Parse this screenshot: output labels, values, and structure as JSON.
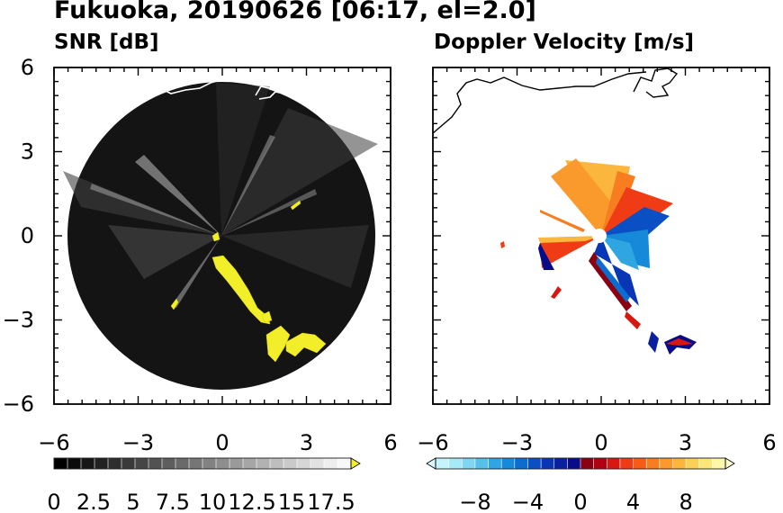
{
  "title": "Fukuoka, 20190626 [06:17, el=2.0]",
  "colors": {
    "background": "#ffffff",
    "snr_echo": "#f2ee2a",
    "coastline_on_dark": "#ffffff",
    "coastline_on_light": "#000000"
  },
  "chart_data": [
    {
      "type": "heatmap",
      "title": "SNR [dB]",
      "xlim": [
        -6,
        6
      ],
      "ylim": [
        -6,
        6
      ],
      "xticks": [
        "−6",
        "−3",
        "0",
        "3",
        "6"
      ],
      "yticks": [
        "6",
        "3",
        "0",
        "−3",
        "−6"
      ],
      "xtick_values": [
        -6,
        -3,
        0,
        3,
        6
      ],
      "ytick_values": [
        6,
        3,
        0,
        -3,
        -6
      ],
      "range_ring_radius": 5.5,
      "colorbar": {
        "range": [
          0,
          18.75
        ],
        "tick_labels": [
          "0",
          "2.5",
          "5",
          "7.5",
          "10",
          "12.5",
          "15",
          "17.5"
        ],
        "tick_values": [
          0,
          2.5,
          5,
          7.5,
          10,
          12.5,
          15,
          17.5
        ],
        "colors": [
          "#000000",
          "#0b0b0b",
          "#161616",
          "#222222",
          "#2e2e2e",
          "#3a3a3a",
          "#464646",
          "#525252",
          "#5e5e5e",
          "#6a6a6a",
          "#767676",
          "#828282",
          "#8e8e8e",
          "#9a9a9a",
          "#a6a6a6",
          "#b2b2b2",
          "#bebebe",
          "#cacaca",
          "#d6d6d6",
          "#e2e2e2",
          "#eeeeee",
          "#f8f8f8"
        ],
        "extend": "max",
        "extend_color": "#f2ee2a"
      }
    },
    {
      "type": "heatmap",
      "title": "Doppler Velocity [m/s]",
      "xlim": [
        -6,
        6
      ],
      "ylim": [
        -6,
        6
      ],
      "xticks": [
        "−6",
        "−3",
        "0",
        "3",
        "6"
      ],
      "yticks": [],
      "xtick_values": [
        -6,
        -3,
        0,
        3,
        6
      ],
      "colorbar": {
        "range": [
          -11,
          11
        ],
        "tick_labels": [
          "−8",
          "−4",
          "0",
          "4",
          "8"
        ],
        "tick_values": [
          -8,
          -4,
          0,
          4,
          8
        ],
        "colors": [
          "#c4f4fc",
          "#a6eaf8",
          "#7fd6f2",
          "#56c0ea",
          "#2fa6e2",
          "#168ad8",
          "#0c6cd0",
          "#0a50c4",
          "#0836b4",
          "#0a20a0",
          "#080c88",
          "#8a0010",
          "#b00010",
          "#d81810",
          "#f03c14",
          "#f65c18",
          "#f87c20",
          "#fa9a2c",
          "#fbb63e",
          "#fcd056",
          "#fde678",
          "#fef6a8"
        ],
        "extend": "both",
        "extend_low_color": "#d8f8fd",
        "extend_high_color": "#fffbd0"
      }
    }
  ]
}
